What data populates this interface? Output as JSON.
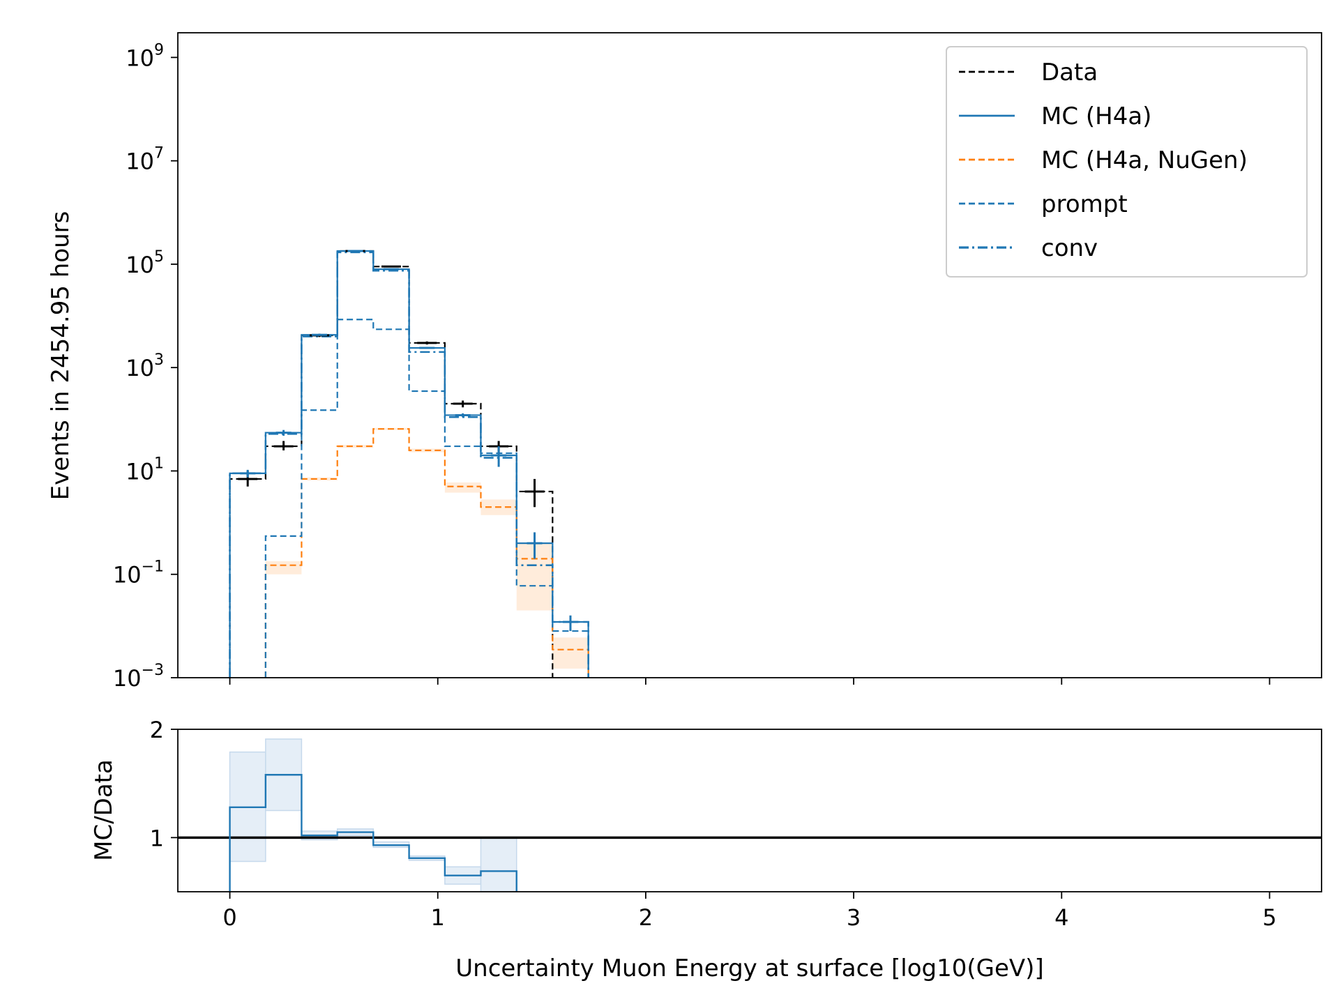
{
  "chart_data": {
    "type": "histogram",
    "panels": [
      {
        "id": "main",
        "ylabel": "Events in 2454.95 hours",
        "yscale": "log",
        "ylim": [
          0.001,
          3000000000
        ],
        "yticks": [
          {
            "value": 0.001,
            "base": "10",
            "exp": "−3"
          },
          {
            "value": 0.1,
            "base": "10",
            "exp": "−1"
          },
          {
            "value": 10,
            "base": "10",
            "exp": "1"
          },
          {
            "value": 1000,
            "base": "10",
            "exp": "3"
          },
          {
            "value": 100000,
            "base": "10",
            "exp": "5"
          },
          {
            "value": 10000000,
            "base": "10",
            "exp": "7"
          },
          {
            "value": 1000000000,
            "base": "10",
            "exp": "9"
          }
        ],
        "xlim": [
          -0.25,
          5.25
        ],
        "bin_edges": [
          0,
          0.172,
          0.345,
          0.517,
          0.69,
          0.862,
          1.034,
          1.207,
          1.379,
          1.552,
          1.724
        ],
        "series": [
          {
            "name": "Data",
            "color": "#000000",
            "style": "dashed",
            "width": 2.2,
            "values": [
              7,
              30,
              4200,
              180000,
              90000,
              3000,
              200,
              30,
              4,
              null
            ],
            "errors": [
              [
                5,
                10
              ],
              [
                25,
                38
              ],
              [
                3900,
                4500
              ],
              [
                175000,
                185000
              ],
              [
                87000,
                93000
              ],
              [
                2800,
                3200
              ],
              [
                170,
                230
              ],
              [
                22,
                38
              ],
              [
                2,
                7
              ],
              null
            ]
          },
          {
            "name": "MC (H4a)",
            "color": "#1f77b4",
            "style": "solid",
            "width": 2.2,
            "values": [
              9,
              55,
              4300,
              180000,
              80000,
              2400,
              120,
              20,
              0.4,
              0.012
            ],
            "errors": [
              [
                7.5,
                10.5
              ],
              [
                48,
                62
              ],
              [
                4100,
                4500
              ],
              [
                176000,
                184000
              ],
              [
                78000,
                82000
              ],
              [
                2300,
                2500
              ],
              [
                110,
                130
              ],
              [
                12,
                30
              ],
              [
                0.2,
                0.65
              ],
              [
                0.008,
                0.016
              ]
            ]
          },
          {
            "name": "MC (H4a, NuGen)",
            "color": "#ff7f0e",
            "style": "dashed",
            "width": 2.2,
            "values": [
              null,
              0.15,
              7,
              30,
              65,
              25,
              5,
              2,
              0.2,
              0.0035
            ],
            "band": [
              null,
              [
                0.1,
                0.18
              ],
              [
                6.5,
                7.5
              ],
              [
                28,
                32
              ],
              [
                62,
                68
              ],
              [
                23,
                27
              ],
              [
                3.8,
                6
              ],
              [
                1.4,
                2.8
              ],
              [
                0.02,
                0.4
              ],
              [
                0.0015,
                0.006
              ]
            ]
          },
          {
            "name": "prompt",
            "color": "#1f77b4",
            "style": "dashed",
            "width": 2.2,
            "values": [
              null,
              0.55,
              150,
              8500,
              5500,
              350,
              30,
              22,
              0.06,
              0.008
            ]
          },
          {
            "name": "conv",
            "color": "#1f77b4",
            "style": "dashdot",
            "width": 2.6,
            "values": [
              9,
              52,
              4000,
              170000,
              75000,
              2000,
              110,
              18,
              0.15,
              0.012
            ]
          }
        ],
        "legend": {
          "placement": "top-right",
          "entries": [
            "Data",
            "MC (H4a)",
            "MC (H4a, NuGen)",
            "prompt",
            "conv"
          ]
        }
      },
      {
        "id": "ratio",
        "ylabel": "MC/Data",
        "ylim": [
          0.5,
          2.0
        ],
        "yticks": [
          {
            "value": 1,
            "label": "1"
          },
          {
            "value": 2,
            "label": "2"
          }
        ],
        "xticks": [
          0,
          1,
          2,
          3,
          4,
          5
        ],
        "xticklabels": [
          "0",
          "1",
          "2",
          "3",
          "4",
          "5"
        ],
        "xlabel": "Uncertainty Muon Energy at surface [log10(GeV)]",
        "reference_line": 1.0,
        "bin_edges": [
          0,
          0.172,
          0.345,
          0.517,
          0.69,
          0.862,
          1.034,
          1.207,
          1.379
        ],
        "values": [
          1.28,
          1.58,
          1.02,
          1.05,
          0.93,
          0.81,
          0.65,
          0.69
        ],
        "band": [
          [
            0.78,
            1.79
          ],
          [
            1.25,
            1.91
          ],
          [
            0.98,
            1.06
          ],
          [
            1.02,
            1.08
          ],
          [
            0.91,
            0.96
          ],
          [
            0.79,
            0.83
          ],
          [
            0.57,
            0.73
          ],
          [
            0.5,
            1.0
          ]
        ],
        "line_color": "#1f77b4",
        "band_color": "#dce8f4"
      }
    ]
  }
}
